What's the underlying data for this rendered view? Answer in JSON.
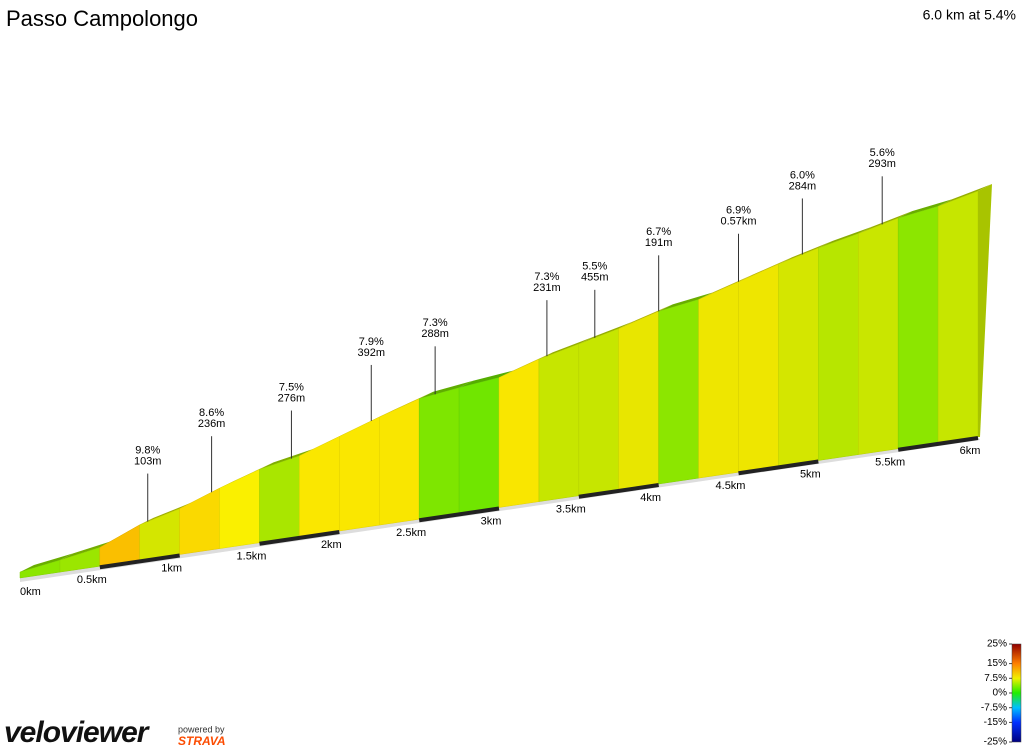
{
  "chart_data": {
    "type": "elevation-profile",
    "title": "Passo Campolongo",
    "subtitle": "6.0 km at 5.4%",
    "x": [
      0,
      0.25,
      0.5,
      0.75,
      1,
      1.25,
      1.5,
      1.75,
      2,
      2.25,
      2.5,
      2.75,
      3,
      3.25,
      3.5,
      3.75,
      4,
      4.25,
      4.5,
      4.75,
      5,
      5.25,
      5.5,
      5.75
    ],
    "values": [
      3.5,
      4,
      9.8,
      6,
      8.6,
      7.5,
      4.5,
      7.9,
      7.9,
      7.3,
      3,
      2.5,
      7.3,
      5.5,
      5.5,
      6.7,
      3.5,
      6.9,
      6.9,
      6,
      5,
      5.6,
      3.5,
      5.5
    ],
    "xlim": [
      0,
      6
    ],
    "xticks": [
      {
        "value": 0,
        "label": "0km"
      },
      {
        "value": 0.5,
        "label": "0.5km"
      },
      {
        "value": 1,
        "label": "1km"
      },
      {
        "value": 1.5,
        "label": "1.5km"
      },
      {
        "value": 2,
        "label": "2km"
      },
      {
        "value": 2.5,
        "label": "2.5km"
      },
      {
        "value": 3,
        "label": "3km"
      },
      {
        "value": 3.5,
        "label": "3.5km"
      },
      {
        "value": 4,
        "label": "4km"
      },
      {
        "value": 4.5,
        "label": "4.5km"
      },
      {
        "value": 5,
        "label": "5km"
      },
      {
        "value": 5.5,
        "label": "5.5km"
      },
      {
        "value": 6,
        "label": "6km"
      }
    ],
    "annotations": [
      {
        "x": 0.8,
        "gradient": "9.8%",
        "length": "103m"
      },
      {
        "x": 1.2,
        "gradient": "8.6%",
        "length": "236m"
      },
      {
        "x": 1.7,
        "gradient": "7.5%",
        "length": "276m"
      },
      {
        "x": 2.2,
        "gradient": "7.9%",
        "length": "392m"
      },
      {
        "x": 2.6,
        "gradient": "7.3%",
        "length": "288m"
      },
      {
        "x": 3.3,
        "gradient": "7.3%",
        "length": "231m"
      },
      {
        "x": 3.6,
        "gradient": "5.5%",
        "length": "455m"
      },
      {
        "x": 4.0,
        "gradient": "6.7%",
        "length": "191m"
      },
      {
        "x": 4.5,
        "gradient": "6.9%",
        "length": "0.57km"
      },
      {
        "x": 4.9,
        "gradient": "6.0%",
        "length": "284m"
      },
      {
        "x": 5.4,
        "gradient": "5.6%",
        "length": "293m"
      }
    ],
    "legend_ticks": [
      {
        "value": 25,
        "label": "25%"
      },
      {
        "value": 15,
        "label": "15%"
      },
      {
        "value": 7.5,
        "label": "7.5%"
      },
      {
        "value": 0,
        "label": "0%"
      },
      {
        "value": -7.5,
        "label": "-7.5%"
      },
      {
        "value": -15,
        "label": "-15%"
      },
      {
        "value": -25,
        "label": "-25%"
      }
    ],
    "legend_range": [
      -25,
      25
    ]
  },
  "footer": {
    "logo": "veloviewer",
    "powered": "powered by",
    "brand": "STRAVA"
  }
}
